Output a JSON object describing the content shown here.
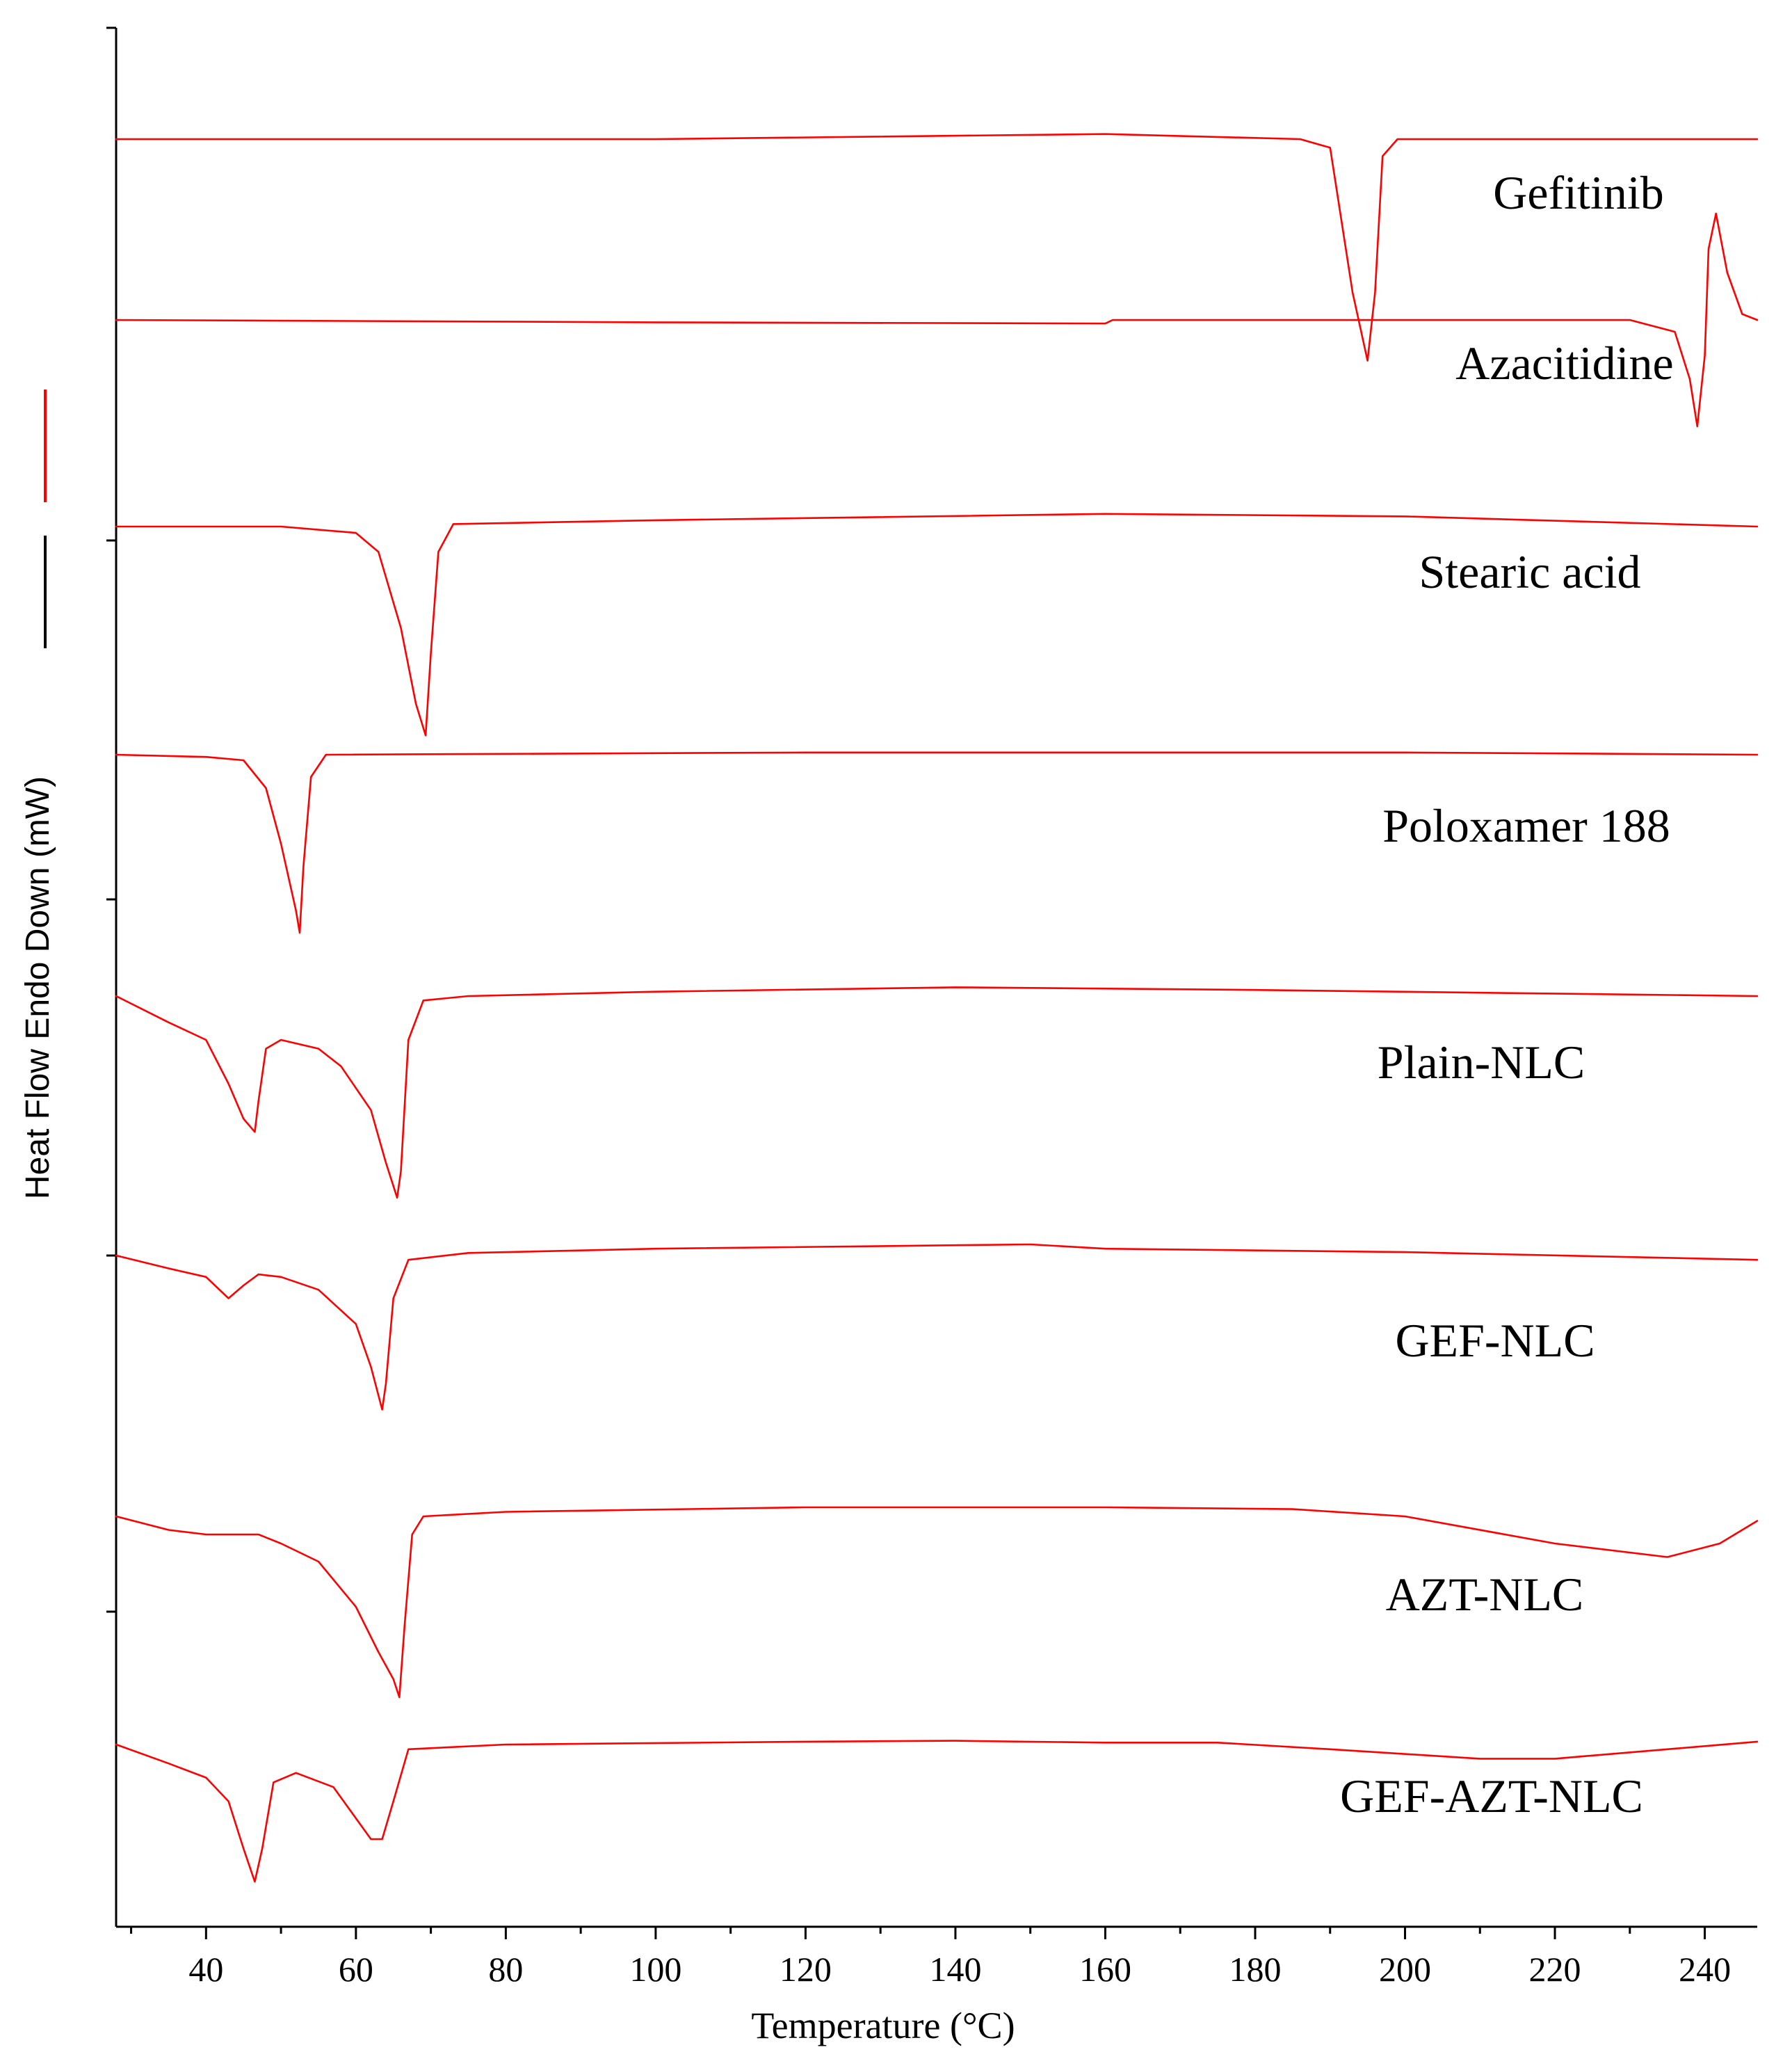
{
  "chart_data": {
    "type": "line",
    "title": "",
    "xlabel": "Temperature (°C)",
    "ylabel": "Heat Flow Endo Down (mW)",
    "xlim": [
      28,
      247
    ],
    "x_ticks": [
      40,
      60,
      80,
      100,
      120,
      140,
      160,
      180,
      200,
      220,
      240
    ],
    "x_tick_labels": [
      "40",
      "60",
      "80",
      "100",
      "120",
      "140",
      "160",
      "180",
      "200",
      "220",
      "240"
    ],
    "curve_color": "#FF0000",
    "scale_bar_colors": [
      "#FF0000",
      "#000000"
    ],
    "grid": false,
    "series": [
      {
        "name": "Gefitinib",
        "points": [
          [
            28,
            0
          ],
          [
            100,
            0
          ],
          [
            160,
            0.3
          ],
          [
            186,
            0
          ],
          [
            190,
            -0.5
          ],
          [
            193,
            -9
          ],
          [
            195,
            -13
          ],
          [
            196,
            -9
          ],
          [
            197,
            -1
          ],
          [
            199,
            0
          ],
          [
            247,
            0
          ]
        ]
      },
      {
        "name": "Azacitidine",
        "points": [
          [
            28,
            0
          ],
          [
            100,
            -0.2
          ],
          [
            160,
            -0.3
          ],
          [
            161,
            0
          ],
          [
            230,
            0
          ],
          [
            236,
            -1
          ],
          [
            238,
            -5
          ],
          [
            239,
            -9
          ],
          [
            240,
            -3
          ],
          [
            240.5,
            6
          ],
          [
            241.5,
            9
          ],
          [
            243,
            4
          ],
          [
            245,
            0.5
          ],
          [
            247,
            0
          ]
        ]
      },
      {
        "name": "Stearic acid",
        "points": [
          [
            28,
            0
          ],
          [
            50,
            0
          ],
          [
            60,
            -0.5
          ],
          [
            63,
            -2
          ],
          [
            66,
            -8
          ],
          [
            68,
            -14
          ],
          [
            69.3,
            -16.5
          ],
          [
            70,
            -10
          ],
          [
            71,
            -2
          ],
          [
            73,
            0.2
          ],
          [
            100,
            0.5
          ],
          [
            160,
            1
          ],
          [
            200,
            0.8
          ],
          [
            247,
            0
          ]
        ]
      },
      {
        "name": "Poloxamer 188",
        "points": [
          [
            28,
            0
          ],
          [
            40,
            -0.2
          ],
          [
            45,
            -0.5
          ],
          [
            48,
            -3
          ],
          [
            50,
            -8
          ],
          [
            52,
            -14
          ],
          [
            52.5,
            -16
          ],
          [
            53,
            -10
          ],
          [
            54,
            -2
          ],
          [
            56,
            0
          ],
          [
            120,
            0.2
          ],
          [
            200,
            0.2
          ],
          [
            247,
            0
          ]
        ]
      },
      {
        "name": "Plain-NLC",
        "points": [
          [
            28,
            0
          ],
          [
            35,
            -3
          ],
          [
            40,
            -5
          ],
          [
            43,
            -10
          ],
          [
            45,
            -14
          ],
          [
            46.5,
            -15.5
          ],
          [
            47,
            -12
          ],
          [
            48,
            -6
          ],
          [
            50,
            -5
          ],
          [
            55,
            -6
          ],
          [
            58,
            -8
          ],
          [
            62,
            -13
          ],
          [
            64,
            -19
          ],
          [
            65.5,
            -23
          ],
          [
            66,
            -20
          ],
          [
            67,
            -5
          ],
          [
            69,
            -0.5
          ],
          [
            75,
            0
          ],
          [
            100,
            0.5
          ],
          [
            140,
            1
          ],
          [
            180,
            0.7
          ],
          [
            247,
            0
          ]
        ]
      },
      {
        "name": "GEF-NLC",
        "points": [
          [
            28,
            0
          ],
          [
            35,
            -1.5
          ],
          [
            40,
            -2.5
          ],
          [
            43,
            -5
          ],
          [
            45,
            -3.5
          ],
          [
            47,
            -2.2
          ],
          [
            50,
            -2.5
          ],
          [
            55,
            -4
          ],
          [
            60,
            -8
          ],
          [
            62,
            -13
          ],
          [
            63.5,
            -18
          ],
          [
            64,
            -15
          ],
          [
            65,
            -5
          ],
          [
            67,
            -0.5
          ],
          [
            75,
            0.3
          ],
          [
            100,
            0.8
          ],
          [
            140,
            1.2
          ],
          [
            150,
            1.3
          ],
          [
            160,
            0.8
          ],
          [
            200,
            0.4
          ],
          [
            247,
            -0.5
          ]
        ]
      },
      {
        "name": "AZT-NLC",
        "points": [
          [
            28,
            0
          ],
          [
            35,
            -1.5
          ],
          [
            40,
            -2
          ],
          [
            47,
            -2
          ],
          [
            50,
            -3
          ],
          [
            55,
            -5
          ],
          [
            60,
            -10
          ],
          [
            63,
            -15
          ],
          [
            65,
            -18
          ],
          [
            65.8,
            -20
          ],
          [
            66.5,
            -12
          ],
          [
            67.5,
            -2
          ],
          [
            69,
            0
          ],
          [
            80,
            0.5
          ],
          [
            120,
            1
          ],
          [
            160,
            1
          ],
          [
            185,
            0.8
          ],
          [
            200,
            0
          ],
          [
            220,
            -3
          ],
          [
            235,
            -4.5
          ],
          [
            242,
            -3
          ],
          [
            247,
            -0.5
          ]
        ]
      },
      {
        "name": "GEF-AZT-NLC",
        "points": [
          [
            28,
            0
          ],
          [
            35,
            -2
          ],
          [
            40,
            -3.5
          ],
          [
            43,
            -6
          ],
          [
            45,
            -11
          ],
          [
            46.5,
            -14.5
          ],
          [
            47.5,
            -11
          ],
          [
            49,
            -4
          ],
          [
            52,
            -3
          ],
          [
            57,
            -4.5
          ],
          [
            62,
            -10
          ],
          [
            63.5,
            -10
          ],
          [
            65,
            -6
          ],
          [
            67,
            -0.5
          ],
          [
            80,
            0
          ],
          [
            120,
            0.3
          ],
          [
            140,
            0.4
          ],
          [
            160,
            0.2
          ],
          [
            175,
            0.2
          ],
          [
            190,
            -0.5
          ],
          [
            210,
            -1.5
          ],
          [
            220,
            -1.5
          ],
          [
            235,
            -0.5
          ],
          [
            247,
            0.3
          ]
        ]
      }
    ]
  }
}
